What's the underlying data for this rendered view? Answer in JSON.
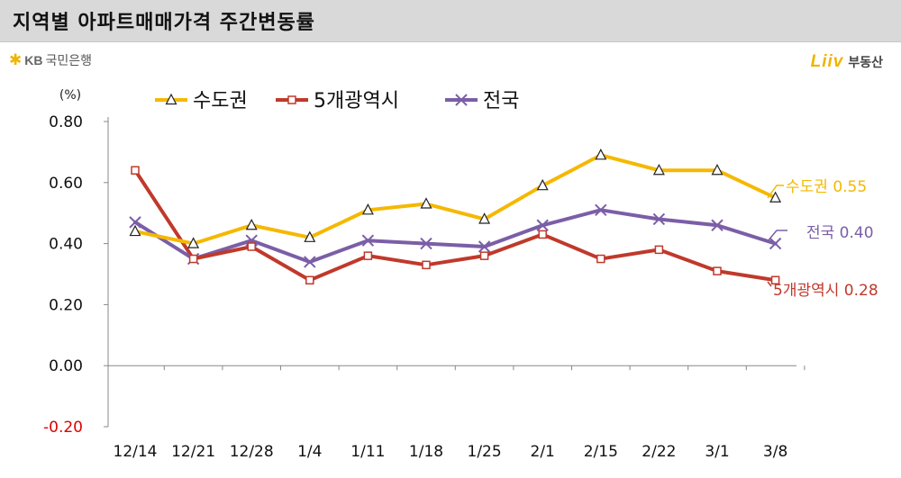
{
  "header": {
    "title": "지역별 아파트매매가격 주간변동률"
  },
  "brand_left": {
    "icon": "kb-star-icon",
    "name": "KB",
    "bank": "국민은행"
  },
  "brand_right": {
    "logo": "Liiv",
    "service": "부동산"
  },
  "chart_data": {
    "type": "line",
    "unit_label": "(%)",
    "categories": [
      "12/14",
      "12/21",
      "12/28",
      "1/4",
      "1/11",
      "1/18",
      "1/25",
      "2/1",
      "2/15",
      "2/22",
      "3/1",
      "3/8"
    ],
    "ylim": [
      -0.2,
      0.8
    ],
    "yticks": [
      "0.80",
      "0.60",
      "0.40",
      "0.20",
      "0.00",
      "-0.20"
    ],
    "ytick_values": [
      0.8,
      0.6,
      0.4,
      0.2,
      0.0,
      -0.2
    ],
    "grid": false,
    "legend_position": "top",
    "series": [
      {
        "name": "수도권",
        "color": "#f5b800",
        "marker": "triangle",
        "values": [
          0.44,
          0.4,
          0.46,
          0.42,
          0.51,
          0.53,
          0.48,
          0.59,
          0.69,
          0.64,
          0.64,
          0.55
        ],
        "end_label": "수도권 0.55"
      },
      {
        "name": "5개광역시",
        "color": "#c0392b",
        "marker": "square",
        "values": [
          0.64,
          0.35,
          0.39,
          0.28,
          0.36,
          0.33,
          0.36,
          0.43,
          0.35,
          0.38,
          0.31,
          0.28
        ],
        "end_label": "5개광역시 0.28"
      },
      {
        "name": "전국",
        "color": "#7b5ea7",
        "marker": "x",
        "values": [
          0.47,
          0.35,
          0.41,
          0.34,
          0.41,
          0.4,
          0.39,
          0.46,
          0.51,
          0.48,
          0.46,
          0.4
        ],
        "end_label": "전국 0.40"
      }
    ]
  }
}
